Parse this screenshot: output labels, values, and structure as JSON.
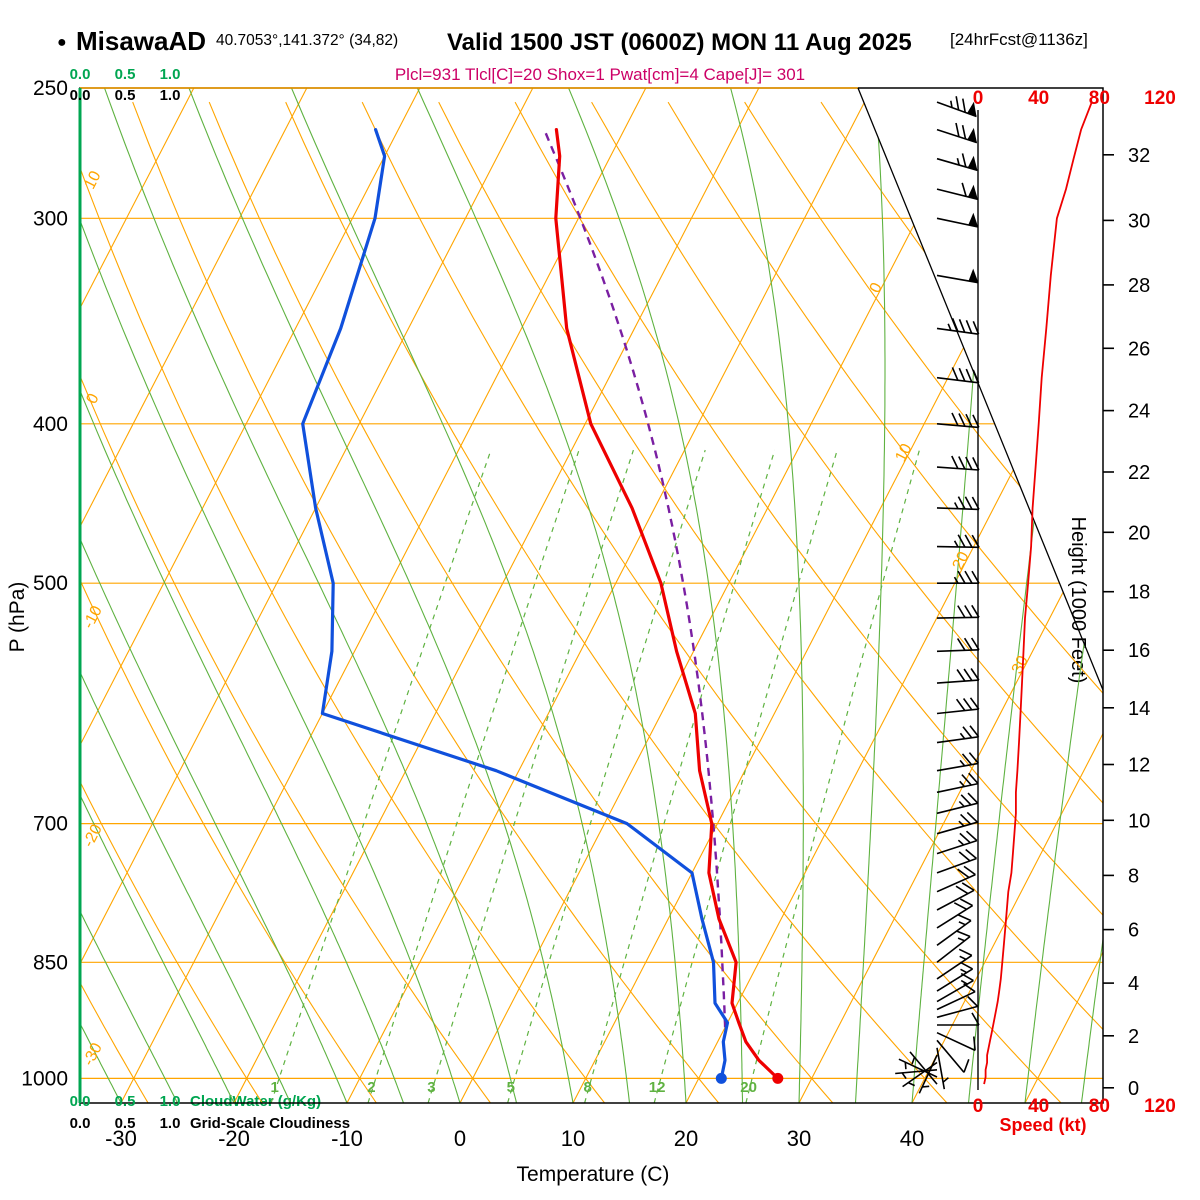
{
  "header": {
    "bullet": "●",
    "station": "MisawaAD",
    "coords": "40.7053°,141.372° (34,82)",
    "valid": "Valid 1500 JST (0600Z) MON 11 Aug 2025",
    "forecast_tag": "[24hrFcst@1136z]",
    "params_line": "Plcl=931 Tlcl[C]=20 Shox=1 Pwat[cm]=4 Cape[J]= 301"
  },
  "scales": {
    "top_green_ticks": [
      "0.0",
      "0.5",
      "1.0"
    ],
    "top_black_ticks": [
      "0.0",
      "0.5",
      "1.0"
    ],
    "bottom_green_ticks": [
      "0.0",
      "0.5",
      "1.0"
    ],
    "bottom_black_ticks": [
      "0.0",
      "0.5",
      "1.0"
    ],
    "cloudwater_label": "CloudWater (g/Kg)",
    "cloudiness_label": "Grid-Scale Cloudiness"
  },
  "axes": {
    "pressure_label": "P (hPa)",
    "temperature_label": "Temperature (C)",
    "height_label": "Height (1000 Feet)",
    "speed_label": "Speed (kt)"
  },
  "colors": {
    "orange": "#FFA500",
    "green": "#5FB241",
    "cloud_green": "#00A651",
    "red": "#EE0000",
    "blue": "#1050DC",
    "purple": "#7A1FA2",
    "magenta": "#CC0066",
    "black": "#000000"
  },
  "chart_data": {
    "type": "skewt_logp_sounding",
    "title": "MisawaAD Valid 1500 JST (0600Z) MON 11 Aug 2025",
    "pressure_ticks_hpa": [
      250,
      300,
      400,
      500,
      700,
      850,
      1000
    ],
    "temperature_ticks_c": [
      -30,
      -20,
      -10,
      0,
      10,
      20,
      30,
      40
    ],
    "height_ticks_kft": [
      0,
      2,
      4,
      6,
      8,
      10,
      12,
      14,
      16,
      18,
      20,
      22,
      24,
      26,
      28,
      30,
      32
    ],
    "speed_ticks_kt": [
      0,
      40,
      80,
      120
    ],
    "isotherm_labels_left_c": [
      10,
      0,
      -10,
      -20,
      -30
    ],
    "isotherm_labels_right_c": [
      0,
      10,
      20,
      30
    ],
    "mixing_ratio_gkg": [
      1,
      2,
      3,
      5,
      8,
      12,
      20
    ],
    "pressure_range_hpa": [
      250,
      1035
    ],
    "grid": {
      "isotherm_step_c": 10,
      "dry_adiabat_step_c": 10,
      "moist_adiabat_step_c": 5
    },
    "sounding": {
      "pressure_hpa": [
        1000,
        975,
        950,
        925,
        900,
        850,
        800,
        750,
        700,
        650,
        600,
        550,
        500,
        450,
        400,
        350,
        300,
        275,
        265
      ],
      "temperature_c": [
        27,
        24.5,
        22.5,
        21,
        19.5,
        18,
        14.5,
        11.5,
        9.5,
        6,
        3,
        -1.5,
        -6,
        -12,
        -19.5,
        -26,
        -32,
        -34.5,
        -36
      ],
      "dewpoint_c": [
        22,
        21.5,
        20.5,
        20,
        18,
        16,
        13,
        10,
        2,
        -12,
        -30,
        -32,
        -35,
        -40,
        -45,
        -46,
        -48,
        -50,
        -52
      ]
    },
    "surface_dots": {
      "pressure_hpa": 1000,
      "temperature_c": 27,
      "dewpoint_c": 22
    },
    "parcel": {
      "p_lcl_hpa": 931,
      "t_lcl_c": 20,
      "showalter": 1,
      "pwat_cm": 4,
      "cape_j": 301,
      "top_hpa": 265
    },
    "wind_columns": [
      "p_hpa",
      "dir_from_deg",
      "speed_kt"
    ],
    "wind_profile": [
      [
        1008,
        140,
        4
      ],
      [
        998,
        115,
        5
      ],
      [
        988,
        85,
        5
      ],
      [
        978,
        55,
        6
      ],
      [
        968,
        25,
        6
      ],
      [
        958,
        350,
        7
      ],
      [
        948,
        320,
        8
      ],
      [
        938,
        295,
        9
      ],
      [
        928,
        270,
        10
      ],
      [
        918,
        255,
        11
      ],
      [
        908,
        245,
        12
      ],
      [
        898,
        240,
        13
      ],
      [
        885,
        238,
        14
      ],
      [
        870,
        236,
        15
      ],
      [
        850,
        232,
        16
      ],
      [
        830,
        234,
        17
      ],
      [
        810,
        238,
        18
      ],
      [
        790,
        242,
        19
      ],
      [
        770,
        246,
        20
      ],
      [
        750,
        250,
        22
      ],
      [
        730,
        252,
        23
      ],
      [
        710,
        254,
        24
      ],
      [
        690,
        256,
        25
      ],
      [
        670,
        258,
        25
      ],
      [
        650,
        260,
        26
      ],
      [
        625,
        262,
        27
      ],
      [
        600,
        264,
        28
      ],
      [
        575,
        266,
        29
      ],
      [
        550,
        268,
        30
      ],
      [
        525,
        269,
        31
      ],
      [
        500,
        270,
        33
      ],
      [
        475,
        271,
        35
      ],
      [
        450,
        272,
        36
      ],
      [
        425,
        274,
        38
      ],
      [
        400,
        275,
        40
      ],
      [
        375,
        277,
        42
      ],
      [
        350,
        278,
        45
      ],
      [
        325,
        280,
        48
      ],
      [
        300,
        282,
        52
      ],
      [
        288,
        284,
        58
      ],
      [
        276,
        286,
        63
      ],
      [
        265,
        288,
        68
      ],
      [
        255,
        290,
        75
      ]
    ],
    "cloudwater_profile_gkg": 0.0,
    "grid_scale_cloudiness": 0.0
  }
}
